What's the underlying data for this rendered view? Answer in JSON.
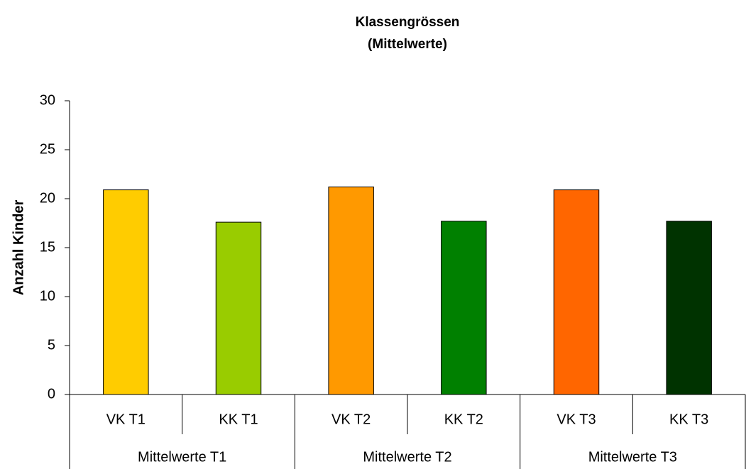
{
  "chart_data": {
    "type": "bar",
    "title": "Klassengrössen",
    "subtitle": "(Mittelwerte)",
    "y_label": "Anzahl Kinder",
    "categories": [
      "VK T1",
      "KK T1",
      "VK T2",
      "KK T2",
      "VK T3",
      "KK T3"
    ],
    "groups": [
      "Mittelwerte T1",
      "Mittelwerte T2",
      "Mittelwerte T3"
    ],
    "values": [
      20.9,
      17.6,
      21.2,
      17.7,
      20.9,
      17.7
    ],
    "colors": [
      "#ffcc00",
      "#99cc00",
      "#ff9900",
      "#008000",
      "#ff6600",
      "#003300"
    ],
    "ylim": [
      0,
      30
    ],
    "yticks": [
      0,
      5,
      10,
      15,
      20,
      25,
      30
    ],
    "grid": false
  }
}
